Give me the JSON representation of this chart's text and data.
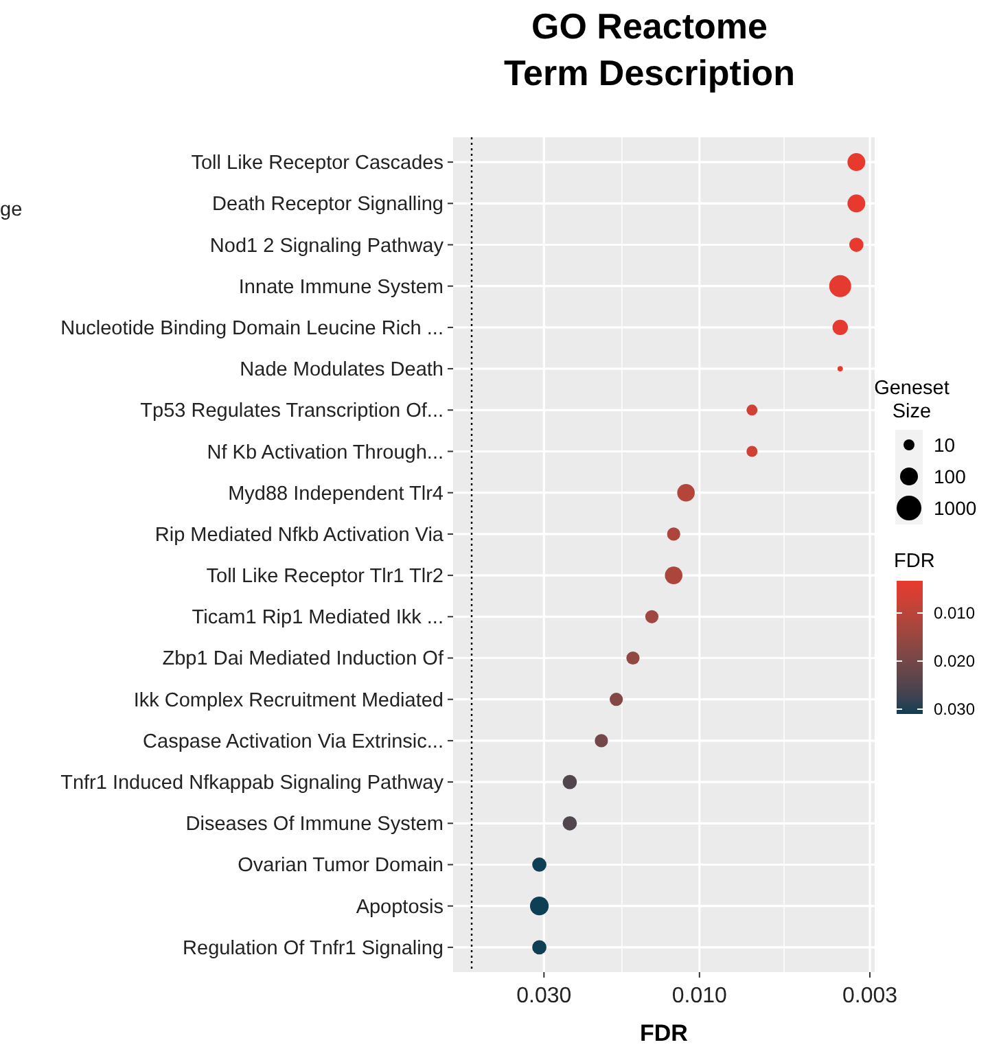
{
  "chart_data": {
    "type": "bubble",
    "title": "GO Reactome\nTerm Description",
    "xlabel": "FDR",
    "orientation": "horizontal",
    "log": "x",
    "categories": [
      "Toll Like Receptor Cascades",
      "Death Receptor Signalling",
      "Nod1 2 Signaling Pathway",
      "Innate Immune System",
      "Nucleotide Binding Domain Leucine Rich ...",
      "Nade Modulates Death",
      "Tp53 Regulates Transcription Of...",
      "Nf Kb Activation Through...",
      "Myd88 Independent Tlr4",
      "Rip Mediated Nfkb Activation Via",
      "Toll Like Receptor Tlr1 Tlr2",
      "Ticam1 Rip1 Mediated Ikk ...",
      "Zbp1 Dai Mediated Induction Of",
      "Ikk Complex Recruitment Mediated",
      "Caspase Activation Via Extrinsic...",
      "Tnfr1 Induced Nfkappab Signaling Pathway",
      "Diseases Of Immune System",
      "Ovarian Tumor Domain",
      "Apoptosis",
      "Regulation Of Tnfr1 Signaling"
    ],
    "values": [
      0.0033,
      0.0033,
      0.0033,
      0.0037,
      0.0037,
      0.0037,
      0.0069,
      0.0069,
      0.011,
      0.012,
      0.012,
      0.014,
      0.016,
      0.018,
      0.02,
      0.025,
      0.025,
      0.031,
      0.031,
      0.031
    ],
    "cvalues": [
      0.0033,
      0.0033,
      0.0033,
      0.0037,
      0.0037,
      0.0037,
      0.0069,
      0.0069,
      0.011,
      0.012,
      0.012,
      0.014,
      0.016,
      0.018,
      0.02,
      0.025,
      0.025,
      0.031,
      0.031,
      0.031
    ],
    "sizes": [
      0.66,
      0.66,
      0.42,
      1,
      0.49,
      0.06,
      0.25,
      0.25,
      0.64,
      0.36,
      0.64,
      0.36,
      0.36,
      0.36,
      0.36,
      0.42,
      0.42,
      0.42,
      0.72,
      0.42
    ],
    "size_legend": [
      {
        "value": 0.25,
        "label": "10"
      },
      {
        "value": 0.66,
        "label": "100"
      },
      {
        "value": 1.27,
        "label": "1000"
      }
    ],
    "legend_title": "Geneset Size",
    "clabel": "FDR",
    "clim": [
      0.0033,
      0.031
    ],
    "cticks": [
      {
        "value": 0.01,
        "label": "0.010"
      },
      {
        "value": 0.02,
        "label": "0.020"
      },
      {
        "value": 0.03,
        "label": "0.030"
      }
    ],
    "xlim": [
      0.057,
      0.0029
    ],
    "xticks": [
      {
        "value": 0.03,
        "label": "0.030"
      },
      {
        "value": 0.0173,
        "label": null
      },
      {
        "value": 0.01,
        "label": "0.010"
      },
      {
        "value": 0.0055,
        "label": null
      },
      0.003
    ],
    "grid": true,
    "ref_lines": [
      {
        "axis": "x",
        "value": 0.05,
        "line_style": "dotted"
      }
    ],
    "annotations": [
      "ge"
    ]
  }
}
